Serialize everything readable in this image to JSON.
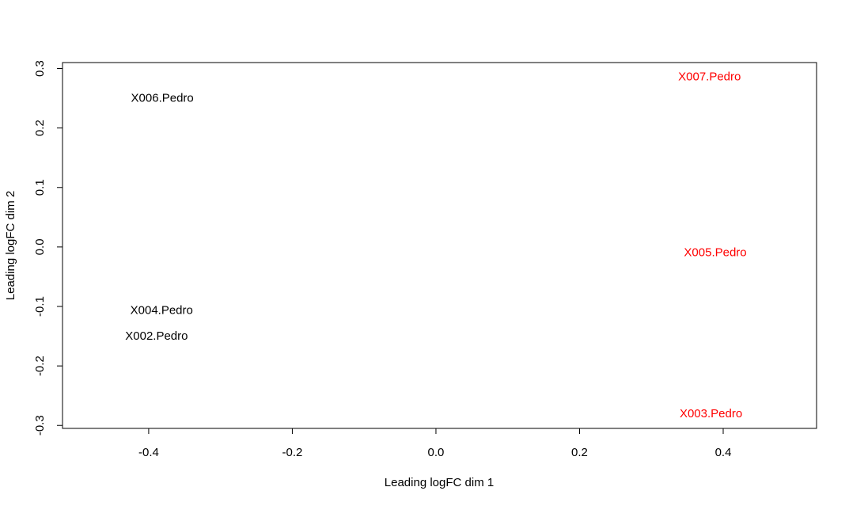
{
  "chart_data": {
    "type": "scatter",
    "title": "",
    "xlabel": "Leading logFC dim 1",
    "ylabel": "Leading logFC dim 2",
    "xlim": [
      -0.52,
      0.53
    ],
    "ylim": [
      -0.305,
      0.31
    ],
    "x_ticks": [
      -0.4,
      -0.2,
      0.0,
      0.2,
      0.4
    ],
    "x_tick_labels": [
      "-0.4",
      "-0.2",
      "0.0",
      "0.2",
      "0.4"
    ],
    "y_ticks": [
      -0.3,
      -0.2,
      -0.1,
      0.0,
      0.1,
      0.2,
      0.3
    ],
    "y_tick_labels": [
      "-0.3",
      "-0.2",
      "-0.1",
      "0.0",
      "0.1",
      "0.2",
      "0.3"
    ],
    "grid": false,
    "legend": "none",
    "points": [
      {
        "label": "X006.Pedro",
        "x": -0.381,
        "y": 0.251,
        "color": "#000000"
      },
      {
        "label": "X004.Pedro",
        "x": -0.382,
        "y": -0.106,
        "color": "#000000"
      },
      {
        "label": "X002.Pedro",
        "x": -0.389,
        "y": -0.149,
        "color": "#000000"
      },
      {
        "label": "X007.Pedro",
        "x": 0.381,
        "y": 0.287,
        "color": "#ff0000"
      },
      {
        "label": "X005.Pedro",
        "x": 0.389,
        "y": -0.009,
        "color": "#ff0000"
      },
      {
        "label": "X003.Pedro",
        "x": 0.383,
        "y": -0.28,
        "color": "#ff0000"
      }
    ]
  }
}
